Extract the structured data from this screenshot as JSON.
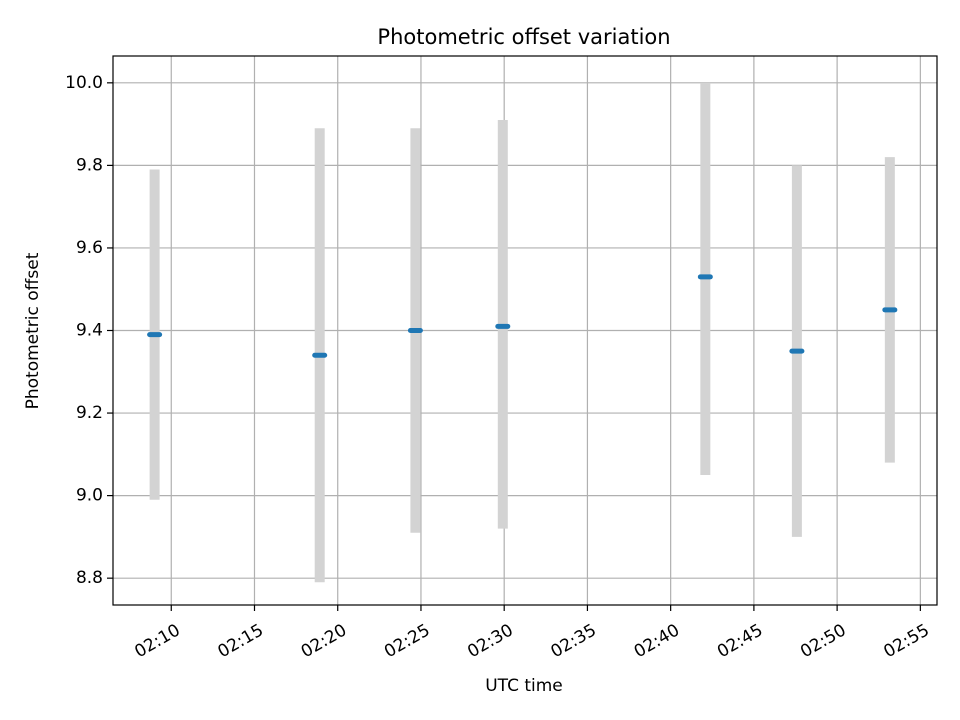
{
  "chart_data": {
    "type": "scatter",
    "title": "Photometric offset variation",
    "xlabel": "UTC time",
    "ylabel": "Photometric offset",
    "grid": true,
    "xlim": [
      "02:06:30",
      "02:56:00"
    ],
    "ylim": [
      8.735,
      10.065
    ],
    "x_ticks": [
      "02:10",
      "02:15",
      "02:20",
      "02:25",
      "02:30",
      "02:35",
      "02:40",
      "02:45",
      "02:50",
      "02:55"
    ],
    "y_ticks": [
      "8.8",
      "9.0",
      "9.2",
      "9.4",
      "9.6",
      "9.8",
      "10.0"
    ],
    "colors": {
      "point": "#1f77b4",
      "errorbar": "#d3d3d3",
      "grid": "#b0b0b0"
    },
    "series": [
      {
        "points": [
          {
            "x": "02:09:00",
            "y": 9.39,
            "ymin": 8.99,
            "ymax": 9.79
          },
          {
            "x": "02:18:55",
            "y": 9.34,
            "ymin": 8.79,
            "ymax": 9.89
          },
          {
            "x": "02:24:40",
            "y": 9.4,
            "ymin": 8.91,
            "ymax": 9.89
          },
          {
            "x": "02:29:55",
            "y": 9.41,
            "ymin": 8.92,
            "ymax": 9.91
          },
          {
            "x": "02:42:05",
            "y": 9.53,
            "ymin": 9.05,
            "ymax": 10.0
          },
          {
            "x": "02:47:35",
            "y": 9.35,
            "ymin": 8.9,
            "ymax": 9.8
          },
          {
            "x": "02:53:10",
            "y": 9.45,
            "ymin": 9.08,
            "ymax": 9.82
          }
        ]
      }
    ]
  }
}
